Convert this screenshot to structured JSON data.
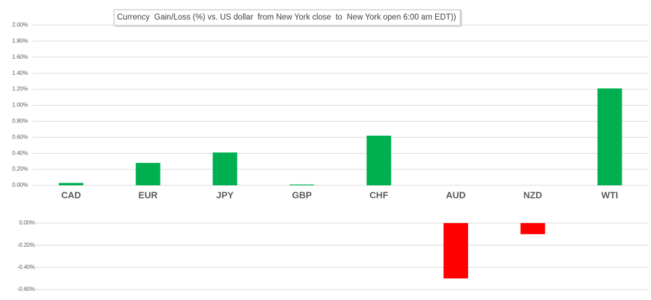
{
  "chart_data": [
    {
      "type": "bar",
      "title": "Currency  Gain/Loss (%) vs. US dollar  from New York close  to  New York open 6:00 am EDT))",
      "categories": [
        "CAD",
        "EUR",
        "JPY",
        "GBP",
        "CHF",
        "AUD",
        "NZD",
        "WTI"
      ],
      "values": [
        0.03,
        0.28,
        0.41,
        0.01,
        0.62,
        null,
        null,
        1.21
      ],
      "color": "#00b050",
      "ylim": [
        0,
        2
      ],
      "yticks": [
        {
          "value": 0,
          "label": "0.00%"
        },
        {
          "value": 0.2,
          "label": "0.20%"
        },
        {
          "value": 0.4,
          "label": "0.40%"
        },
        {
          "value": 0.6,
          "label": "0.60%"
        },
        {
          "value": 0.8,
          "label": "0.80%"
        },
        {
          "value": 1.0,
          "label": "1.00%"
        },
        {
          "value": 1.2,
          "label": "1.20%"
        },
        {
          "value": 1.4,
          "label": "1.40%"
        },
        {
          "value": 1.6,
          "label": "1.60%"
        },
        {
          "value": 1.8,
          "label": "1.80%"
        },
        {
          "value": 2.0,
          "label": "2.00%"
        }
      ],
      "grid": true
    },
    {
      "type": "bar",
      "values": [
        null,
        null,
        null,
        null,
        null,
        -0.5,
        -0.1,
        null
      ],
      "color": "#ff0000",
      "ylim": [
        -0.6,
        0
      ],
      "yticks": [
        {
          "value": 0,
          "label": "0.00%"
        },
        {
          "value": -0.2,
          "label": "-0.20%"
        },
        {
          "value": -0.4,
          "label": "-0.40%"
        },
        {
          "value": -0.6,
          "label": "-0.60%"
        }
      ],
      "grid": true
    }
  ]
}
